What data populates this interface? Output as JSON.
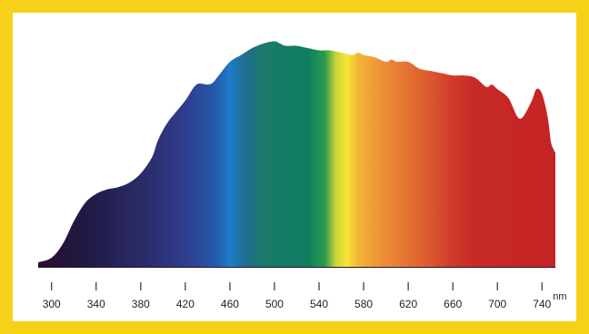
{
  "chart_data": {
    "type": "area",
    "title": "",
    "xlabel": "",
    "ylabel": "",
    "x_unit": "nm",
    "xlim": [
      288,
      752
    ],
    "ylim": [
      0,
      1
    ],
    "grid": false,
    "legend": "none",
    "x_ticks": [
      300,
      340,
      380,
      420,
      460,
      500,
      540,
      580,
      620,
      660,
      700,
      740
    ],
    "x_tick_labels": [
      "300",
      "340",
      "380",
      "420",
      "460",
      "500",
      "540",
      "580",
      "620",
      "660",
      "700",
      "740"
    ],
    "series": [
      {
        "x": [
          288,
          300,
          310,
          320,
          330,
          340,
          350,
          360,
          370,
          380,
          390,
          395,
          400,
          405,
          410,
          420,
          430,
          440,
          445,
          450,
          460,
          470,
          480,
          490,
          500,
          505,
          510,
          520,
          530,
          540,
          550,
          560,
          570,
          575,
          580,
          590,
          600,
          605,
          610,
          620,
          630,
          640,
          650,
          660,
          670,
          680,
          690,
          695,
          700,
          710,
          720,
          730,
          735,
          740,
          745,
          748,
          750,
          752
        ],
        "y": [
          0.02,
          0.04,
          0.1,
          0.2,
          0.28,
          0.32,
          0.34,
          0.35,
          0.37,
          0.41,
          0.48,
          0.55,
          0.6,
          0.64,
          0.67,
          0.73,
          0.8,
          0.8,
          0.81,
          0.84,
          0.9,
          0.93,
          0.96,
          0.98,
          0.99,
          0.98,
          0.97,
          0.97,
          0.96,
          0.95,
          0.95,
          0.94,
          0.93,
          0.94,
          0.93,
          0.92,
          0.9,
          0.91,
          0.9,
          0.9,
          0.87,
          0.86,
          0.85,
          0.84,
          0.84,
          0.83,
          0.79,
          0.8,
          0.78,
          0.74,
          0.65,
          0.72,
          0.78,
          0.76,
          0.66,
          0.55,
          0.52,
          0.5
        ]
      }
    ],
    "colors": {
      "frame": "#f7d117",
      "background": "#ffffff",
      "axis": "#333333",
      "spectrum_stops": [
        {
          "nm": 290,
          "color": "#2b0e2c"
        },
        {
          "nm": 330,
          "color": "#1f1a45"
        },
        {
          "nm": 380,
          "color": "#2a2a66"
        },
        {
          "nm": 420,
          "color": "#303d8e"
        },
        {
          "nm": 445,
          "color": "#2457a8"
        },
        {
          "nm": 460,
          "color": "#1e7cc8"
        },
        {
          "nm": 475,
          "color": "#1f6d8c"
        },
        {
          "nm": 490,
          "color": "#1c7a6a"
        },
        {
          "nm": 510,
          "color": "#137a66"
        },
        {
          "nm": 530,
          "color": "#0f7e5e"
        },
        {
          "nm": 545,
          "color": "#2a9a4e"
        },
        {
          "nm": 555,
          "color": "#c8d43a"
        },
        {
          "nm": 565,
          "color": "#f7e637"
        },
        {
          "nm": 575,
          "color": "#f3b535"
        },
        {
          "nm": 600,
          "color": "#ec8a36"
        },
        {
          "nm": 630,
          "color": "#e06530"
        },
        {
          "nm": 660,
          "color": "#d03a2a"
        },
        {
          "nm": 680,
          "color": "#c62a26"
        },
        {
          "nm": 752,
          "color": "#c52424"
        }
      ]
    }
  }
}
